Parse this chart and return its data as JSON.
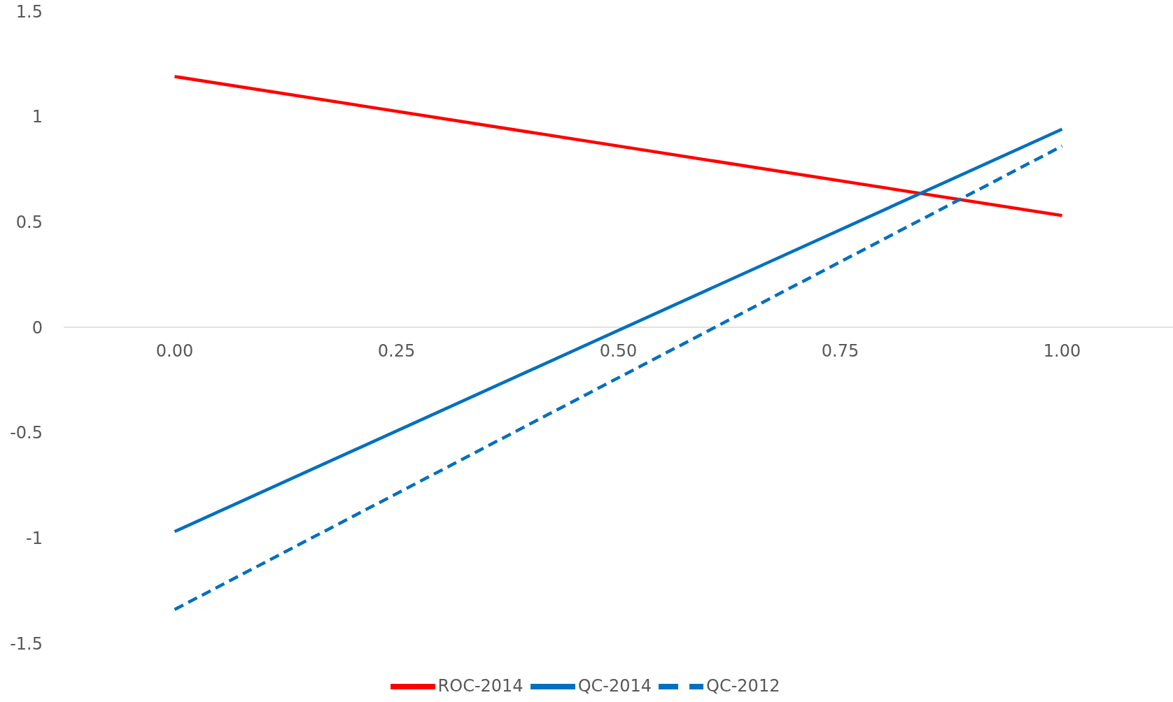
{
  "chart_data": {
    "type": "line",
    "x": [
      0,
      1
    ],
    "series": [
      {
        "name": "ROC-2014",
        "color": "#ff0000",
        "values": [
          1.19,
          0.53
        ],
        "line_style": "solid"
      },
      {
        "name": "QC-2014",
        "color": "#0070c0",
        "values": [
          -0.97,
          0.94
        ],
        "line_style": "solid"
      },
      {
        "name": "QC-2012",
        "color": "#0070c0",
        "values": [
          -1.34,
          0.86
        ],
        "line_style": "dashed"
      }
    ],
    "xlim": [
      -0.125,
      1.125
    ],
    "xticks": [
      {
        "value": 0,
        "label": "0.00"
      },
      {
        "value": 0.25,
        "label": "0.25"
      },
      {
        "value": 0.5,
        "label": "0.50"
      },
      {
        "value": 0.75,
        "label": "0.75"
      },
      {
        "value": 1,
        "label": "1.00"
      }
    ],
    "ylim": [
      -1.5,
      1.5
    ],
    "yticks": [
      -1.5,
      -1,
      -0.5,
      0,
      0.5,
      1,
      1.5
    ],
    "grid": false,
    "legend": "bottom",
    "marker": "none"
  }
}
